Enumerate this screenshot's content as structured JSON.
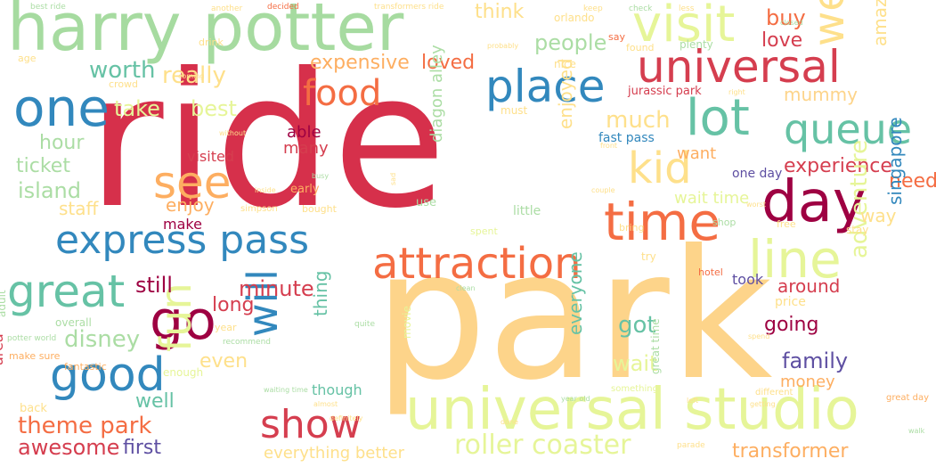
{
  "words": [
    {
      "text": "ride",
      "color": "#d6304b"
    },
    {
      "text": "park",
      "color": "#fdd48a"
    },
    {
      "text": "harry potter",
      "color": "#a6dba0"
    },
    {
      "text": "universal studio",
      "color": "#e6f598"
    },
    {
      "text": "express pass",
      "color": "#3288bd"
    },
    {
      "text": "attraction",
      "color": "#f46d43"
    },
    {
      "text": "universal",
      "color": "#d53e4f"
    },
    {
      "text": "place",
      "color": "#3288bd"
    },
    {
      "text": "lot",
      "color": "#66c2a5"
    },
    {
      "text": "day",
      "color": "#9e0142"
    },
    {
      "text": "time",
      "color": "#f46d43"
    },
    {
      "text": "visit",
      "color": "#e6f598"
    },
    {
      "text": "one",
      "color": "#3288bd"
    },
    {
      "text": "food",
      "color": "#f46d43"
    },
    {
      "text": "queue",
      "color": "#66c2a5"
    },
    {
      "text": "great",
      "color": "#66c2a5"
    },
    {
      "text": "go",
      "color": "#9e0142"
    },
    {
      "text": "good",
      "color": "#3288bd"
    },
    {
      "text": "show",
      "color": "#d53e4f"
    },
    {
      "text": "kid",
      "color": "#fee08b"
    },
    {
      "text": "see",
      "color": "#fdae61"
    },
    {
      "text": "line",
      "color": "#e6f598"
    },
    {
      "text": "went",
      "color": "#fee08b"
    },
    {
      "text": "fun",
      "color": "#e6f598"
    },
    {
      "text": "will",
      "color": "#3288bd"
    },
    {
      "text": "worth",
      "color": "#66c2a5"
    },
    {
      "text": "people",
      "color": "#abdda4"
    },
    {
      "text": "experience",
      "color": "#d53e4f"
    },
    {
      "text": "roller coaster",
      "color": "#e6f598"
    },
    {
      "text": "theme park",
      "color": "#f46d43"
    },
    {
      "text": "awesome",
      "color": "#d53e4f"
    },
    {
      "text": "disney",
      "color": "#abdda4"
    },
    {
      "text": "family",
      "color": "#5e4fa2"
    },
    {
      "text": "minute",
      "color": "#d53e4f"
    },
    {
      "text": "still",
      "color": "#9e0142"
    },
    {
      "text": "island",
      "color": "#abdda4"
    },
    {
      "text": "ticket",
      "color": "#abdda4"
    },
    {
      "text": "hour",
      "color": "#abdda4"
    },
    {
      "text": "expensive",
      "color": "#fdae61"
    },
    {
      "text": "loved",
      "color": "#f46d43"
    },
    {
      "text": "really",
      "color": "#fee08b"
    },
    {
      "text": "take",
      "color": "#e6f598"
    },
    {
      "text": "best",
      "color": "#e6f598"
    },
    {
      "text": "much",
      "color": "#fee08b"
    },
    {
      "text": "think",
      "color": "#fee08b"
    },
    {
      "text": "buy",
      "color": "#f46d43"
    },
    {
      "text": "love",
      "color": "#d53e4f"
    },
    {
      "text": "amazing",
      "color": "#fee08b"
    },
    {
      "text": "mummy",
      "color": "#fdd48a"
    },
    {
      "text": "jurassic park",
      "color": "#d53e4f"
    },
    {
      "text": "fast pass",
      "color": "#3288bd"
    },
    {
      "text": "want",
      "color": "#fdae61"
    },
    {
      "text": "wait time",
      "color": "#e6f598"
    },
    {
      "text": "one day",
      "color": "#5e4fa2"
    },
    {
      "text": "need",
      "color": "#f46d43"
    },
    {
      "text": "singapore",
      "color": "#3288bd"
    },
    {
      "text": "adventure",
      "color": "#e6f598"
    },
    {
      "text": "going",
      "color": "#9e0142"
    },
    {
      "text": "got",
      "color": "#66c2a5"
    },
    {
      "text": "around",
      "color": "#d53e4f"
    },
    {
      "text": "took",
      "color": "#5e4fa2"
    },
    {
      "text": "wait",
      "color": "#e6f598"
    },
    {
      "text": "everyone",
      "color": "#66c2a5"
    },
    {
      "text": "money",
      "color": "#fdae61"
    },
    {
      "text": "well",
      "color": "#66c2a5"
    },
    {
      "text": "first",
      "color": "#5e4fa2"
    },
    {
      "text": "even",
      "color": "#fee08b"
    },
    {
      "text": "long",
      "color": "#d53e4f"
    },
    {
      "text": "thing",
      "color": "#66c2a5"
    },
    {
      "text": "though",
      "color": "#66c2a5"
    },
    {
      "text": "area",
      "color": "#d53e4f"
    },
    {
      "text": "able",
      "color": "#9e0142"
    },
    {
      "text": "many",
      "color": "#d53e4f"
    },
    {
      "text": "visited",
      "color": "#d53e4f"
    },
    {
      "text": "make",
      "color": "#9e0142"
    },
    {
      "text": "enjoy",
      "color": "#fdae61"
    },
    {
      "text": "staff",
      "color": "#fee08b"
    },
    {
      "text": "diagon alley",
      "color": "#abdda4"
    },
    {
      "text": "enjoyed",
      "color": "#fee08b"
    },
    {
      "text": "everything better",
      "color": "#fee08b"
    },
    {
      "text": "transformer",
      "color": "#fdae61"
    },
    {
      "text": "great time",
      "color": "#abdda4"
    },
    {
      "text": "orlando",
      "color": "#fee08b"
    },
    {
      "text": "plenty",
      "color": "#abdda4"
    },
    {
      "text": "nice",
      "color": "#fee08b"
    },
    {
      "text": "must",
      "color": "#fee08b"
    },
    {
      "text": "crowd",
      "color": "#fee08b"
    },
    {
      "text": "drink",
      "color": "#fee08b"
    },
    {
      "text": "age",
      "color": "#fee08b"
    },
    {
      "text": "say",
      "color": "#f46d43"
    },
    {
      "text": "found",
      "color": "#fee08b"
    },
    {
      "text": "early",
      "color": "#fdae61"
    },
    {
      "text": "use",
      "color": "#abdda4"
    },
    {
      "text": "bought",
      "color": "#fee08b"
    },
    {
      "text": "little",
      "color": "#abdda4"
    },
    {
      "text": "spent",
      "color": "#e6f598"
    },
    {
      "text": "bring",
      "color": "#fee08b"
    },
    {
      "text": "try",
      "color": "#fee08b"
    },
    {
      "text": "hotel",
      "color": "#f46d43"
    },
    {
      "text": "price",
      "color": "#fee08b"
    },
    {
      "text": "stay",
      "color": "#fee08b"
    },
    {
      "text": "way",
      "color": "#fee08b"
    },
    {
      "text": "shop",
      "color": "#abdda4"
    },
    {
      "text": "free",
      "color": "#fee08b"
    },
    {
      "text": "overall",
      "color": "#abdda4"
    },
    {
      "text": "adult",
      "color": "#abdda4"
    },
    {
      "text": "fantastic",
      "color": "#fdae61"
    },
    {
      "text": "make sure",
      "color": "#fdae61"
    },
    {
      "text": "back",
      "color": "#fee08b"
    },
    {
      "text": "enough",
      "color": "#e6f598"
    },
    {
      "text": "year",
      "color": "#fee08b"
    },
    {
      "text": "recommend",
      "color": "#abdda4"
    },
    {
      "text": "simpson",
      "color": "#fee08b"
    },
    {
      "text": "quite",
      "color": "#abdda4"
    },
    {
      "text": "movie",
      "color": "#e6f598"
    },
    {
      "text": "something",
      "color": "#e6f598"
    },
    {
      "text": "different",
      "color": "#fee08b"
    },
    {
      "text": "great day",
      "color": "#fdae61"
    },
    {
      "text": "parade",
      "color": "#fee08b"
    },
    {
      "text": "potter world",
      "color": "#abdda4"
    },
    {
      "text": "best ride",
      "color": "#abdda4"
    },
    {
      "text": "another",
      "color": "#fee08b"
    },
    {
      "text": "decided",
      "color": "#f46d43"
    },
    {
      "text": "transformers ride",
      "color": "#fee08b"
    },
    {
      "text": "especially",
      "color": "#fee08b"
    },
    {
      "text": "keep",
      "color": "#fee08b"
    },
    {
      "text": "check",
      "color": "#abdda4"
    },
    {
      "text": "less",
      "color": "#fee08b"
    },
    {
      "text": "probably",
      "color": "#fee08b"
    },
    {
      "text": "waiting time",
      "color": "#abdda4"
    },
    {
      "text": "done",
      "color": "#fee08b"
    },
    {
      "text": "year old",
      "color": "#abdda4"
    },
    {
      "text": "left",
      "color": "#fee08b"
    },
    {
      "text": "getting",
      "color": "#fee08b"
    },
    {
      "text": "couple",
      "color": "#fee08b"
    },
    {
      "text": "without",
      "color": "#fee08b"
    },
    {
      "text": "almost",
      "color": "#fee08b"
    },
    {
      "text": "definitely",
      "color": "#fee08b"
    },
    {
      "text": "front",
      "color": "#fee08b"
    },
    {
      "text": "inside",
      "color": "#fee08b"
    },
    {
      "text": "busy",
      "color": "#abdda4"
    },
    {
      "text": "worst",
      "color": "#fee08b"
    },
    {
      "text": "sad",
      "color": "#fee08b"
    },
    {
      "text": "spend",
      "color": "#fee08b"
    },
    {
      "text": "right",
      "color": "#fee08b"
    },
    {
      "text": "clean",
      "color": "#abdda4"
    },
    {
      "text": "coming",
      "color": "#fee08b"
    },
    {
      "text": "closed",
      "color": "#abdda4"
    },
    {
      "text": "walk",
      "color": "#abdda4"
    }
  ]
}
